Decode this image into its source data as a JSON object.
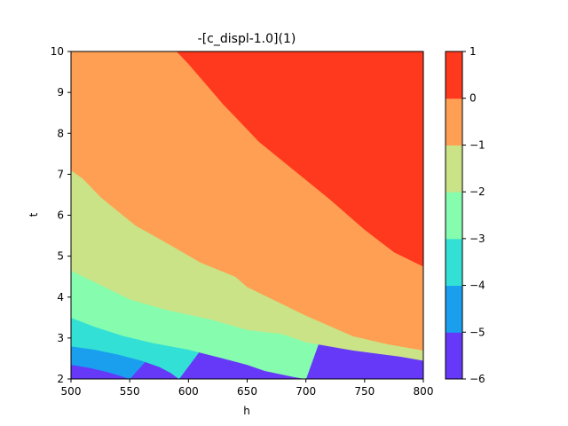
{
  "chart_data": {
    "type": "contourf",
    "title": "-[c_displ-1.0](1)",
    "xlabel": "h",
    "ylabel": "t",
    "xlim": [
      500,
      800
    ],
    "ylim": [
      2,
      10
    ],
    "xticks": [
      "500",
      "550",
      "600",
      "650",
      "700",
      "750",
      "800"
    ],
    "yticks": [
      "2",
      "3",
      "4",
      "5",
      "6",
      "7",
      "8",
      "9",
      "10"
    ],
    "colorbar": {
      "levels": [
        -6,
        -5,
        -4,
        -3,
        -2,
        -1,
        0,
        1
      ],
      "tick_labels": [
        "−6",
        "−5",
        "−4",
        "−3",
        "−2",
        "−1",
        "0",
        "1"
      ],
      "colors": [
        "#6539f7",
        "#1a9fef",
        "#33e0d5",
        "#86fdae",
        "#cae386",
        "#ff9f53",
        "#ff391d"
      ]
    },
    "contour_lines": [
      {
        "level": -5,
        "points": [
          [
            500,
            2.35
          ],
          [
            515,
            2.28
          ],
          [
            530,
            2.18
          ],
          [
            542,
            2.08
          ],
          [
            550,
            2.0
          ]
        ]
      },
      {
        "level": -4,
        "points": [
          [
            500,
            2.8
          ],
          [
            520,
            2.72
          ],
          [
            540,
            2.6
          ],
          [
            560,
            2.45
          ],
          [
            575,
            2.3
          ],
          [
            585,
            2.15
          ],
          [
            592,
            2.0
          ]
        ]
      },
      {
        "level": -3,
        "points": [
          [
            500,
            3.5
          ],
          [
            520,
            3.28
          ],
          [
            545,
            3.05
          ],
          [
            570,
            2.88
          ],
          [
            600,
            2.72
          ],
          [
            630,
            2.5
          ],
          [
            650,
            2.35
          ],
          [
            665,
            2.2
          ],
          [
            690,
            2.05
          ],
          [
            700,
            2.0
          ]
        ]
      },
      {
        "level": -2,
        "points": [
          [
            500,
            4.65
          ],
          [
            525,
            4.3
          ],
          [
            550,
            3.95
          ],
          [
            580,
            3.7
          ],
          [
            620,
            3.45
          ],
          [
            650,
            3.2
          ],
          [
            680,
            3.1
          ],
          [
            700,
            2.9
          ],
          [
            740,
            2.7
          ],
          [
            780,
            2.55
          ],
          [
            800,
            2.45
          ]
        ]
      },
      {
        "level": -1,
        "points": [
          [
            500,
            7.1
          ],
          [
            510,
            6.9
          ],
          [
            525,
            6.45
          ],
          [
            540,
            6.1
          ],
          [
            555,
            5.75
          ],
          [
            580,
            5.35
          ],
          [
            610,
            4.85
          ],
          [
            640,
            4.5
          ],
          [
            650,
            4.25
          ],
          [
            700,
            3.55
          ],
          [
            740,
            3.05
          ],
          [
            770,
            2.85
          ],
          [
            800,
            2.7
          ]
        ]
      },
      {
        "level": 0,
        "points": [
          [
            590,
            10.0
          ],
          [
            600,
            9.7
          ],
          [
            615,
            9.2
          ],
          [
            630,
            8.7
          ],
          [
            640,
            8.4
          ],
          [
            660,
            7.8
          ],
          [
            690,
            7.1
          ],
          [
            720,
            6.4
          ],
          [
            750,
            5.65
          ],
          [
            775,
            5.1
          ],
          [
            800,
            4.75
          ]
        ]
      }
    ]
  }
}
